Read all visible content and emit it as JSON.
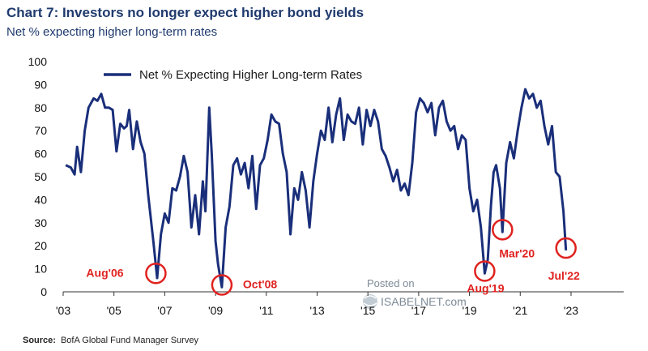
{
  "header": {
    "title": "Chart 7: Investors no longer expect higher bond yields",
    "subtitle": "Net % expecting higher long-term rates"
  },
  "source": {
    "label": "Source:",
    "text": "BofA Global Fund Manager Survey"
  },
  "watermark": {
    "line1": "Posted on",
    "line2": "ISABELNET.com"
  },
  "colors": {
    "series": "#1a2f7a",
    "annotation": "#e0221f",
    "text": "#1f3a6e"
  },
  "chart_data": {
    "type": "line",
    "title": "Chart 7: Investors no longer expect higher bond yields",
    "subtitle": "Net % expecting higher long-term rates",
    "xlabel": "",
    "ylabel": "",
    "ylim": [
      0,
      100
    ],
    "xlim": [
      2003.0,
      2024.5
    ],
    "grid": false,
    "legend_position": "top-left",
    "y_ticks": [
      0,
      10,
      20,
      30,
      40,
      50,
      60,
      70,
      80,
      90,
      100
    ],
    "x_ticks": [
      {
        "label": "'03",
        "year": 2003
      },
      {
        "label": "'05",
        "year": 2005
      },
      {
        "label": "'07",
        "year": 2007
      },
      {
        "label": "'09",
        "year": 2009
      },
      {
        "label": "'11",
        "year": 2011
      },
      {
        "label": "'13",
        "year": 2013
      },
      {
        "label": "'15",
        "year": 2015
      },
      {
        "label": "'17",
        "year": 2017
      },
      {
        "label": "'19",
        "year": 2019
      },
      {
        "label": "'21",
        "year": 2021
      },
      {
        "label": "'23",
        "year": 2023
      }
    ],
    "series": [
      {
        "name": "Net % Expecting Higher Long-term Rates",
        "points": [
          [
            2003.1,
            55
          ],
          [
            2003.3,
            54
          ],
          [
            2003.45,
            51
          ],
          [
            2003.55,
            63
          ],
          [
            2003.7,
            52
          ],
          [
            2003.85,
            70
          ],
          [
            2004.0,
            80
          ],
          [
            2004.2,
            84
          ],
          [
            2004.35,
            83
          ],
          [
            2004.5,
            86
          ],
          [
            2004.65,
            80
          ],
          [
            2004.8,
            80
          ],
          [
            2004.95,
            79
          ],
          [
            2005.1,
            61
          ],
          [
            2005.25,
            73
          ],
          [
            2005.4,
            71
          ],
          [
            2005.5,
            72
          ],
          [
            2005.6,
            79
          ],
          [
            2005.75,
            62
          ],
          [
            2005.9,
            74
          ],
          [
            2006.05,
            65
          ],
          [
            2006.2,
            60
          ],
          [
            2006.35,
            42
          ],
          [
            2006.55,
            22
          ],
          [
            2006.7,
            6
          ],
          [
            2006.85,
            25
          ],
          [
            2007.0,
            34
          ],
          [
            2007.15,
            30
          ],
          [
            2007.3,
            45
          ],
          [
            2007.45,
            44
          ],
          [
            2007.6,
            50
          ],
          [
            2007.75,
            59
          ],
          [
            2007.9,
            52
          ],
          [
            2008.05,
            28
          ],
          [
            2008.2,
            42
          ],
          [
            2008.35,
            25
          ],
          [
            2008.5,
            48
          ],
          [
            2008.6,
            35
          ],
          [
            2008.75,
            80
          ],
          [
            2008.85,
            60
          ],
          [
            2009.0,
            22
          ],
          [
            2009.1,
            12
          ],
          [
            2009.25,
            2
          ],
          [
            2009.4,
            28
          ],
          [
            2009.55,
            37
          ],
          [
            2009.7,
            55
          ],
          [
            2009.85,
            58
          ],
          [
            2010.0,
            51
          ],
          [
            2010.15,
            56
          ],
          [
            2010.3,
            45
          ],
          [
            2010.45,
            59
          ],
          [
            2010.6,
            36
          ],
          [
            2010.75,
            55
          ],
          [
            2010.9,
            58
          ],
          [
            2011.05,
            66
          ],
          [
            2011.2,
            77
          ],
          [
            2011.35,
            74
          ],
          [
            2011.5,
            73
          ],
          [
            2011.65,
            60
          ],
          [
            2011.8,
            52
          ],
          [
            2011.95,
            25
          ],
          [
            2012.1,
            45
          ],
          [
            2012.25,
            40
          ],
          [
            2012.4,
            52
          ],
          [
            2012.55,
            44
          ],
          [
            2012.7,
            28
          ],
          [
            2012.85,
            48
          ],
          [
            2013.0,
            60
          ],
          [
            2013.15,
            70
          ],
          [
            2013.3,
            66
          ],
          [
            2013.45,
            80
          ],
          [
            2013.6,
            65
          ],
          [
            2013.75,
            77
          ],
          [
            2013.9,
            84
          ],
          [
            2014.05,
            66
          ],
          [
            2014.2,
            77
          ],
          [
            2014.35,
            74
          ],
          [
            2014.5,
            73
          ],
          [
            2014.65,
            80
          ],
          [
            2014.8,
            64
          ],
          [
            2014.95,
            79
          ],
          [
            2015.1,
            72
          ],
          [
            2015.25,
            79
          ],
          [
            2015.4,
            74
          ],
          [
            2015.55,
            62
          ],
          [
            2015.7,
            59
          ],
          [
            2015.85,
            54
          ],
          [
            2016.0,
            48
          ],
          [
            2016.15,
            53
          ],
          [
            2016.3,
            44
          ],
          [
            2016.45,
            47
          ],
          [
            2016.6,
            42
          ],
          [
            2016.75,
            56
          ],
          [
            2016.9,
            78
          ],
          [
            2017.05,
            84
          ],
          [
            2017.2,
            82
          ],
          [
            2017.35,
            78
          ],
          [
            2017.5,
            82
          ],
          [
            2017.65,
            68
          ],
          [
            2017.8,
            80
          ],
          [
            2017.95,
            83
          ],
          [
            2018.1,
            74
          ],
          [
            2018.25,
            70
          ],
          [
            2018.4,
            72
          ],
          [
            2018.55,
            62
          ],
          [
            2018.7,
            68
          ],
          [
            2018.85,
            66
          ],
          [
            2019.0,
            45
          ],
          [
            2019.15,
            35
          ],
          [
            2019.3,
            40
          ],
          [
            2019.45,
            28
          ],
          [
            2019.6,
            8
          ],
          [
            2019.72,
            14
          ],
          [
            2019.85,
            38
          ],
          [
            2019.95,
            52
          ],
          [
            2020.05,
            55
          ],
          [
            2020.2,
            45
          ],
          [
            2020.3,
            26
          ],
          [
            2020.45,
            56
          ],
          [
            2020.6,
            65
          ],
          [
            2020.75,
            58
          ],
          [
            2020.9,
            70
          ],
          [
            2021.05,
            80
          ],
          [
            2021.2,
            88
          ],
          [
            2021.35,
            84
          ],
          [
            2021.5,
            86
          ],
          [
            2021.65,
            80
          ],
          [
            2021.8,
            83
          ],
          [
            2021.95,
            72
          ],
          [
            2022.1,
            64
          ],
          [
            2022.25,
            72
          ],
          [
            2022.4,
            52
          ],
          [
            2022.55,
            50
          ],
          [
            2022.7,
            35
          ],
          [
            2022.8,
            18
          ]
        ]
      }
    ],
    "annotations": [
      {
        "label": "Aug'06",
        "x": 2006.65,
        "y": 8
      },
      {
        "label": "Oct'08",
        "x": 2009.25,
        "y": 3
      },
      {
        "label": "Aug'19",
        "x": 2019.6,
        "y": 9
      },
      {
        "label": "Mar'20",
        "x": 2020.3,
        "y": 27
      },
      {
        "label": "Jul'22",
        "x": 2022.8,
        "y": 19
      }
    ]
  }
}
